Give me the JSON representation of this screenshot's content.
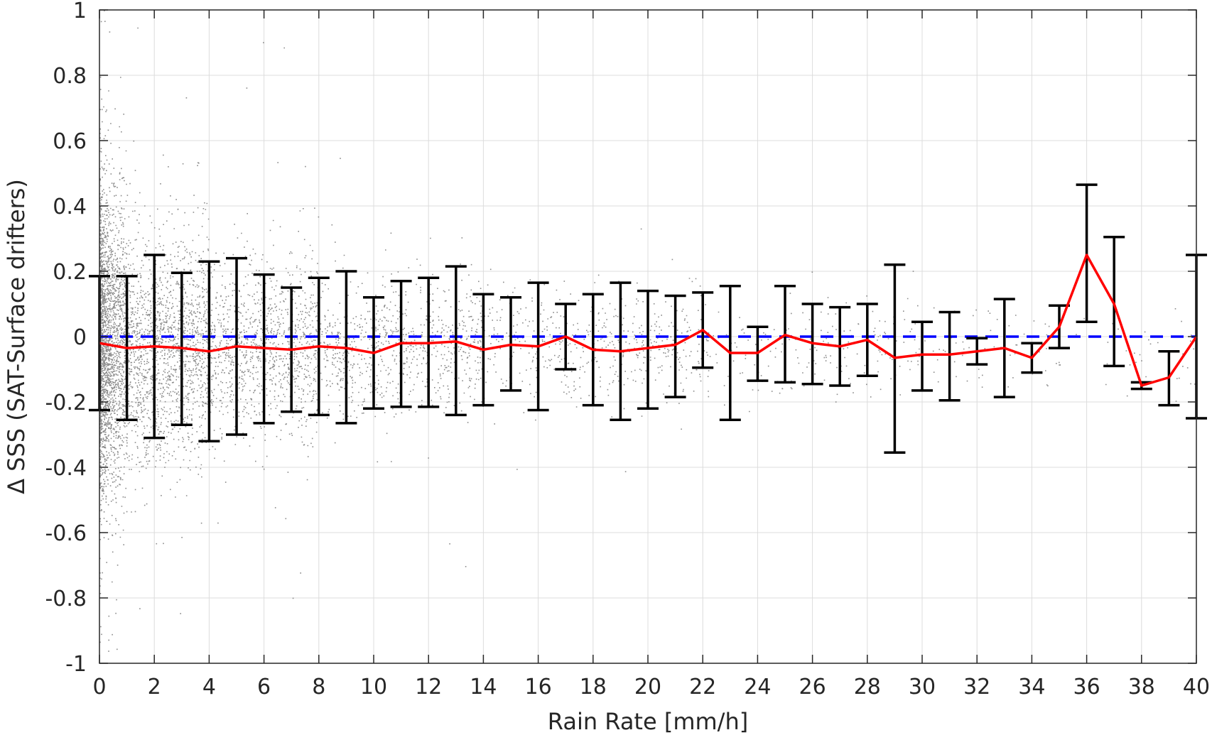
{
  "chart_data": {
    "type": "scatter",
    "title": "",
    "xlabel": "Rain Rate [mm/h]",
    "ylabel": "Δ SSS (SAT-Surface drifters)",
    "xlim": [
      0,
      40
    ],
    "ylim": [
      -1,
      1
    ],
    "grid": true,
    "legend": "none",
    "x_ticks": [
      0,
      2,
      4,
      6,
      8,
      10,
      12,
      14,
      16,
      18,
      20,
      22,
      24,
      26,
      28,
      30,
      32,
      34,
      36,
      38,
      40
    ],
    "x_tick_labels": [
      "0",
      "2",
      "4",
      "6",
      "8",
      "10",
      "12",
      "14",
      "16",
      "18",
      "20",
      "22",
      "24",
      "26",
      "28",
      "30",
      "32",
      "34",
      "36",
      "38",
      "40"
    ],
    "y_ticks": [
      1,
      0.8,
      0.6,
      0.4,
      0.2,
      0,
      -0.2,
      -0.4,
      -0.6,
      -0.8,
      -1
    ],
    "y_tick_labels": [
      "1",
      "0.8",
      "0.6",
      "0.4",
      "0.2",
      "0",
      "-0.2",
      "-0.4",
      "-0.6",
      "-0.8",
      "-1"
    ],
    "series": [
      {
        "type": "errorbar_line",
        "color": "#ff0000",
        "errorbar_color": "#000000",
        "x": [
          0,
          1,
          2,
          3,
          4,
          5,
          6,
          7,
          8,
          9,
          10,
          11,
          12,
          13,
          14,
          15,
          16,
          17,
          18,
          19,
          20,
          21,
          22,
          23,
          24,
          25,
          26,
          27,
          28,
          29,
          30,
          31,
          32,
          33,
          34,
          35,
          36,
          37,
          38,
          39,
          40
        ],
        "mean": [
          -0.02,
          -0.035,
          -0.03,
          -0.035,
          -0.045,
          -0.03,
          -0.035,
          -0.04,
          -0.03,
          -0.035,
          -0.05,
          -0.02,
          -0.02,
          -0.015,
          -0.04,
          -0.025,
          -0.03,
          0.0,
          -0.04,
          -0.045,
          -0.035,
          -0.025,
          0.02,
          -0.05,
          -0.05,
          0.005,
          -0.02,
          -0.03,
          -0.01,
          -0.065,
          -0.055,
          -0.055,
          -0.045,
          -0.035,
          -0.065,
          0.03,
          0.25,
          0.1,
          -0.15,
          -0.125,
          0.0
        ],
        "lower": [
          -0.225,
          -0.255,
          -0.31,
          -0.27,
          -0.32,
          -0.3,
          -0.265,
          -0.23,
          -0.24,
          -0.265,
          -0.22,
          -0.215,
          -0.215,
          -0.24,
          -0.21,
          -0.165,
          -0.225,
          -0.1,
          -0.21,
          -0.255,
          -0.22,
          -0.185,
          -0.095,
          -0.255,
          -0.135,
          -0.14,
          -0.145,
          -0.15,
          -0.12,
          -0.355,
          -0.165,
          -0.195,
          -0.085,
          -0.185,
          -0.11,
          -0.035,
          0.045,
          -0.09,
          -0.16,
          -0.21,
          -0.25
        ],
        "upper": [
          0.185,
          0.185,
          0.25,
          0.195,
          0.23,
          0.24,
          0.19,
          0.15,
          0.18,
          0.2,
          0.12,
          0.17,
          0.18,
          0.215,
          0.13,
          0.12,
          0.165,
          0.1,
          0.13,
          0.165,
          0.14,
          0.125,
          0.135,
          0.155,
          0.03,
          0.155,
          0.1,
          0.09,
          0.1,
          0.22,
          0.045,
          0.075,
          -0.005,
          0.115,
          -0.02,
          0.095,
          0.465,
          0.305,
          -0.14,
          -0.045,
          0.25
        ]
      },
      {
        "type": "reference_line",
        "y": 0,
        "color": "#0000ff",
        "style": "dashed"
      },
      {
        "type": "scatter",
        "color": "#808080",
        "distribution": [
          {
            "x": [
              0,
              1
            ],
            "y_center": -0.03,
            "y_spread": 0.22,
            "count": 2600
          },
          {
            "x": [
              1,
              4
            ],
            "y_center": -0.035,
            "y_spread": 0.17,
            "count": 1600
          },
          {
            "x": [
              4,
              8
            ],
            "y_center": -0.035,
            "y_spread": 0.13,
            "count": 1100
          },
          {
            "x": [
              8,
              14
            ],
            "y_center": -0.03,
            "y_spread": 0.1,
            "count": 800
          },
          {
            "x": [
              14,
              22
            ],
            "y_center": -0.03,
            "y_spread": 0.08,
            "count": 500
          },
          {
            "x": [
              22,
              30
            ],
            "y_center": -0.03,
            "y_spread": 0.07,
            "count": 200
          },
          {
            "x": [
              30,
              40
            ],
            "y_center": -0.04,
            "y_spread": 0.07,
            "count": 90
          }
        ]
      }
    ]
  }
}
